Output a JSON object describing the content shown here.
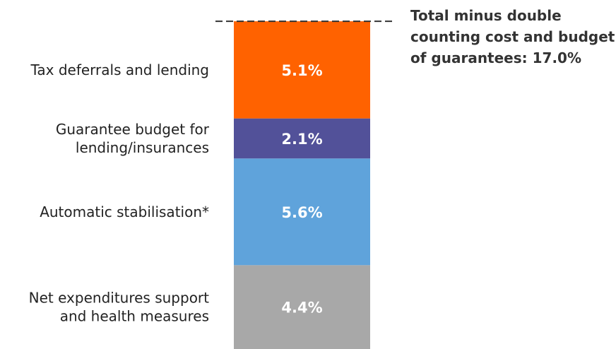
{
  "chart_data": {
    "type": "bar",
    "stacked": true,
    "segments": [
      {
        "label_lines": [
          "Net expenditures support",
          "and health measures"
        ],
        "value": 4.4,
        "value_label": "4.4%",
        "color": "#a8a8a8"
      },
      {
        "label_lines": [
          "Automatic stabilisation*"
        ],
        "value": 5.6,
        "value_label": "5.6%",
        "color": "#5fa3db"
      },
      {
        "label_lines": [
          "Guarantee budget for",
          "lending/insurances"
        ],
        "value": 2.1,
        "value_label": "2.1%",
        "color": "#525199"
      },
      {
        "label_lines": [
          "Tax deferrals and lending"
        ],
        "value": 5.1,
        "value_label": "5.1%",
        "color": "#ff6200"
      }
    ],
    "total": {
      "value": 17.0,
      "label_lines": [
        "Total minus double",
        "counting cost and budget",
        "of guarantees: 17.0%"
      ]
    },
    "ylim": [
      0,
      17.2
    ],
    "grid": false,
    "legend": "none"
  }
}
